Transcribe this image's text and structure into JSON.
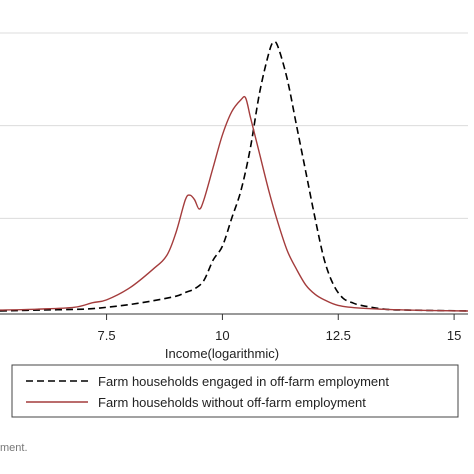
{
  "chart_data": {
    "type": "line",
    "xlabel": "Income(logarithmic)",
    "ylabel": "",
    "title": "",
    "xlim": [
      5.2,
      15.3
    ],
    "ylim": [
      0,
      0.3
    ],
    "x_ticks": [
      "7.5",
      "10",
      "12.5",
      "15"
    ],
    "x_tick_values": [
      7.5,
      10,
      12.5,
      15
    ],
    "grid": true,
    "legend_position": "bottom",
    "series": [
      {
        "name": "Farm households engaged in off-farm employment",
        "style": "dashed",
        "color": "#000000",
        "x": [
          5.2,
          6.0,
          7.0,
          7.5,
          8.0,
          8.5,
          9.0,
          9.2,
          9.4,
          9.6,
          9.8,
          10.0,
          10.2,
          10.4,
          10.6,
          10.8,
          11.0,
          11.1,
          11.2,
          11.4,
          11.6,
          11.8,
          12.0,
          12.2,
          12.4,
          12.6,
          12.8,
          13.0,
          13.5,
          14.0,
          15.3
        ],
        "y": [
          0.0,
          0.001,
          0.002,
          0.004,
          0.007,
          0.011,
          0.016,
          0.02,
          0.024,
          0.033,
          0.055,
          0.07,
          0.1,
          0.13,
          0.175,
          0.235,
          0.278,
          0.29,
          0.285,
          0.25,
          0.2,
          0.15,
          0.1,
          0.055,
          0.028,
          0.014,
          0.009,
          0.006,
          0.002,
          0.001,
          0.0
        ]
      },
      {
        "name": "Farm households without off-farm employment",
        "style": "solid",
        "color": "#a43c3c",
        "x": [
          5.2,
          6.0,
          6.8,
          7.2,
          7.5,
          8.0,
          8.5,
          8.8,
          9.0,
          9.2,
          9.3,
          9.4,
          9.5,
          9.6,
          9.8,
          10.0,
          10.2,
          10.4,
          10.5,
          10.6,
          10.7,
          10.8,
          11.0,
          11.2,
          11.4,
          11.6,
          11.8,
          12.0,
          12.2,
          12.5,
          13.0,
          14.0,
          15.3
        ],
        "y": [
          0.001,
          0.002,
          0.004,
          0.009,
          0.012,
          0.025,
          0.045,
          0.06,
          0.085,
          0.12,
          0.125,
          0.12,
          0.11,
          0.12,
          0.155,
          0.19,
          0.215,
          0.228,
          0.23,
          0.21,
          0.19,
          0.17,
          0.13,
          0.095,
          0.065,
          0.045,
          0.028,
          0.018,
          0.012,
          0.006,
          0.003,
          0.001,
          0.0
        ]
      }
    ]
  },
  "caption": "ment."
}
